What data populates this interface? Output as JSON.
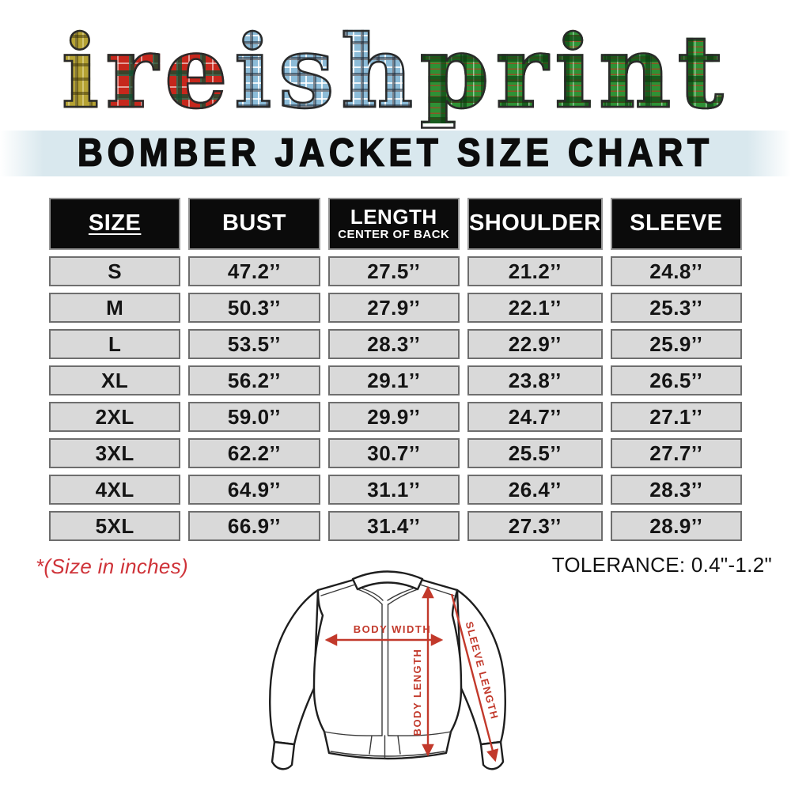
{
  "logo": {
    "text": "ireishprint",
    "segments": [
      {
        "text": "i",
        "tartan": "gold"
      },
      {
        "text": "re",
        "tartan": "red"
      },
      {
        "text": "ish",
        "tartan": "blue"
      },
      {
        "text": "print",
        "tartan": "green"
      }
    ]
  },
  "banner": {
    "title": "BOMBER JACKET SIZE CHART"
  },
  "size_chart": {
    "columns": [
      {
        "label": "SIZE",
        "sub": ""
      },
      {
        "label": "BUST",
        "sub": ""
      },
      {
        "label": "LENGTH",
        "sub": "CENTER OF BACK"
      },
      {
        "label": "SHOULDER",
        "sub": ""
      },
      {
        "label": "SLEEVE",
        "sub": ""
      }
    ],
    "rows": [
      [
        "S",
        "47.2’’",
        "27.5’’",
        "21.2’’",
        "24.8’’"
      ],
      [
        "M",
        "50.3’’",
        "27.9’’",
        "22.1’’",
        "25.3’’"
      ],
      [
        "L",
        "53.5’’",
        "28.3’’",
        "22.9’’",
        "25.9’’"
      ],
      [
        "XL",
        "56.2’’",
        "29.1’’",
        "23.8’’",
        "26.5’’"
      ],
      [
        "2XL",
        "59.0’’",
        "29.9’’",
        "24.7’’",
        "27.1’’"
      ],
      [
        "3XL",
        "62.2’’",
        "30.7’’",
        "25.5’’",
        "27.7’’"
      ],
      [
        "4XL",
        "64.9’’",
        "31.1’’",
        "26.4’’",
        "28.3’’"
      ],
      [
        "5XL",
        "66.9’’",
        "31.4’’",
        "27.3’’",
        "28.9’’"
      ]
    ]
  },
  "notes": {
    "size_note": "*(Size in inches)",
    "tolerance": "TOLERANCE: 0.4\"-1.2\""
  },
  "diagram": {
    "body_width_label": "BODY WIDTH",
    "body_length_label": "BODY LENGTH",
    "sleeve_length_label": "SLEEVE LENGTH"
  },
  "colors": {
    "banner_bg": "#d9e8ee",
    "cell_bg": "#d9d9d9",
    "cell_border": "#6e6e6e",
    "header_bg": "#0b0b0b",
    "header_text": "#ffffff",
    "note_red": "#cf3339",
    "arrow_red": "#c2392b",
    "tartan_gold": "#b5a233",
    "tartan_red": "#c6271c",
    "tartan_blue": "#8cbcd8",
    "tartan_green": "#2e9135"
  }
}
